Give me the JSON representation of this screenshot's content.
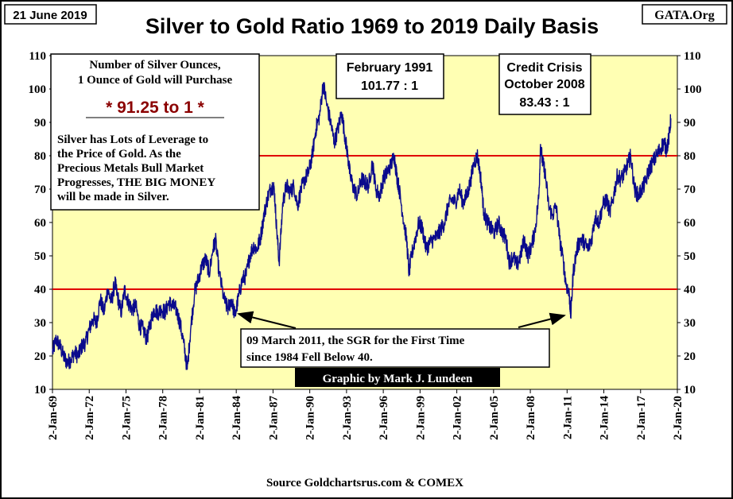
{
  "chart_data": {
    "type": "line",
    "title": "Silver to Gold Ratio 1969 to 2019 Daily Basis",
    "date_label": "21 June 2019",
    "source_tag": "GATA.Org",
    "footer": "Source Goldchartsrus.com & COMEX",
    "credit": "Graphic by Mark J. Lundeen",
    "xlabel": "",
    "ylabel": "",
    "ylim": [
      10,
      110
    ],
    "y_ticks": [
      "10",
      "20",
      "30",
      "40",
      "50",
      "60",
      "70",
      "80",
      "90",
      "100",
      "110"
    ],
    "x_ticks": [
      "2-Jan-69",
      "2-Jan-72",
      "2-Jan-75",
      "2-Jan-78",
      "2-Jan-81",
      "2-Jan-84",
      "2-Jan-87",
      "2-Jan-90",
      "2-Jan-93",
      "2-Jan-96",
      "2-Jan-99",
      "2-Jan-02",
      "2-Jan-05",
      "2-Jan-08",
      "2-Jan-11",
      "2-Jan-14",
      "2-Jan-17",
      "2-Jan-20"
    ],
    "x_range_years": [
      1969.0,
      2020.0
    ],
    "reference_lines": [
      40,
      80
    ],
    "colors": {
      "background": "#ffffb3",
      "series": "#0a0a8c",
      "reference": "#e00000",
      "highlight_text": "#8b0000",
      "credit_bg": "#000000"
    },
    "series": [
      {
        "values": [
          [
            1969.0,
            21
          ],
          [
            1969.3,
            25
          ],
          [
            1969.6,
            23
          ],
          [
            1969.9,
            20
          ],
          [
            1970.2,
            18
          ],
          [
            1970.5,
            19
          ],
          [
            1970.8,
            21
          ],
          [
            1971.1,
            20
          ],
          [
            1971.4,
            23
          ],
          [
            1971.7,
            24
          ],
          [
            1972.0,
            28
          ],
          [
            1972.3,
            31
          ],
          [
            1972.6,
            30
          ],
          [
            1972.9,
            37
          ],
          [
            1973.2,
            33
          ],
          [
            1973.5,
            40
          ],
          [
            1973.8,
            36
          ],
          [
            1974.1,
            42
          ],
          [
            1974.3,
            38
          ],
          [
            1974.6,
            33
          ],
          [
            1974.9,
            40
          ],
          [
            1975.2,
            36
          ],
          [
            1975.5,
            34
          ],
          [
            1975.8,
            35
          ],
          [
            1976.1,
            29
          ],
          [
            1976.4,
            28
          ],
          [
            1976.7,
            25
          ],
          [
            1977.0,
            30
          ],
          [
            1977.3,
            34
          ],
          [
            1977.6,
            33
          ],
          [
            1977.9,
            34
          ],
          [
            1978.2,
            33
          ],
          [
            1978.5,
            36
          ],
          [
            1978.8,
            35
          ],
          [
            1979.1,
            34
          ],
          [
            1979.4,
            30
          ],
          [
            1979.7,
            24
          ],
          [
            1980.0,
            16
          ],
          [
            1980.3,
            29
          ],
          [
            1980.6,
            39
          ],
          [
            1980.9,
            43
          ],
          [
            1981.2,
            47
          ],
          [
            1981.5,
            49
          ],
          [
            1981.8,
            45
          ],
          [
            1982.1,
            52
          ],
          [
            1982.3,
            55
          ],
          [
            1982.6,
            45
          ],
          [
            1983.0,
            37
          ],
          [
            1983.3,
            34
          ],
          [
            1983.6,
            37
          ],
          [
            1983.9,
            32
          ],
          [
            1984.2,
            38
          ],
          [
            1984.5,
            43
          ],
          [
            1984.8,
            44
          ],
          [
            1985.1,
            50
          ],
          [
            1985.4,
            53
          ],
          [
            1985.7,
            52
          ],
          [
            1986.0,
            56
          ],
          [
            1986.3,
            63
          ],
          [
            1986.6,
            68
          ],
          [
            1986.9,
            71
          ],
          [
            1987.1,
            70
          ],
          [
            1987.3,
            58
          ],
          [
            1987.5,
            48
          ],
          [
            1987.8,
            66
          ],
          [
            1988.1,
            71
          ],
          [
            1988.4,
            69
          ],
          [
            1988.7,
            71
          ],
          [
            1989.0,
            65
          ],
          [
            1989.3,
            70
          ],
          [
            1989.6,
            73
          ],
          [
            1989.9,
            75
          ],
          [
            1990.2,
            80
          ],
          [
            1990.5,
            88
          ],
          [
            1990.8,
            92
          ],
          [
            1991.1,
            101.8
          ],
          [
            1991.4,
            95
          ],
          [
            1991.7,
            90
          ],
          [
            1992.0,
            84
          ],
          [
            1992.3,
            88
          ],
          [
            1992.6,
            93
          ],
          [
            1992.9,
            85
          ],
          [
            1993.1,
            80
          ],
          [
            1993.3,
            74
          ],
          [
            1993.6,
            70
          ],
          [
            1993.9,
            68
          ],
          [
            1994.2,
            73
          ],
          [
            1994.5,
            72
          ],
          [
            1994.8,
            71
          ],
          [
            1995.1,
            78
          ],
          [
            1995.4,
            70
          ],
          [
            1995.7,
            68
          ],
          [
            1996.0,
            73
          ],
          [
            1996.3,
            75
          ],
          [
            1996.6,
            77
          ],
          [
            1996.9,
            80
          ],
          [
            1997.1,
            74
          ],
          [
            1997.3,
            70
          ],
          [
            1997.6,
            62
          ],
          [
            1997.9,
            55
          ],
          [
            1998.1,
            45
          ],
          [
            1998.3,
            50
          ],
          [
            1998.6,
            55
          ],
          [
            1998.9,
            60
          ],
          [
            1999.2,
            58
          ],
          [
            1999.5,
            52
          ],
          [
            1999.8,
            54
          ],
          [
            2000.1,
            55
          ],
          [
            2000.4,
            56
          ],
          [
            2000.7,
            58
          ],
          [
            2001.0,
            60
          ],
          [
            2001.3,
            65
          ],
          [
            2001.6,
            67
          ],
          [
            2001.9,
            66
          ],
          [
            2002.2,
            70
          ],
          [
            2002.5,
            66
          ],
          [
            2002.8,
            68
          ],
          [
            2003.1,
            72
          ],
          [
            2003.4,
            78
          ],
          [
            2003.7,
            80
          ],
          [
            2004.0,
            72
          ],
          [
            2004.2,
            63
          ],
          [
            2004.5,
            60
          ],
          [
            2004.8,
            58
          ],
          [
            2005.1,
            57
          ],
          [
            2005.4,
            60
          ],
          [
            2005.7,
            57
          ],
          [
            2006.0,
            55
          ],
          [
            2006.3,
            48
          ],
          [
            2006.6,
            50
          ],
          [
            2006.9,
            47
          ],
          [
            2007.2,
            50
          ],
          [
            2007.5,
            55
          ],
          [
            2007.8,
            50
          ],
          [
            2008.1,
            53
          ],
          [
            2008.4,
            58
          ],
          [
            2008.7,
            68
          ],
          [
            2008.83,
            83.4
          ],
          [
            2009.0,
            78
          ],
          [
            2009.2,
            75
          ],
          [
            2009.5,
            65
          ],
          [
            2009.8,
            62
          ],
          [
            2010.1,
            65
          ],
          [
            2010.4,
            55
          ],
          [
            2010.7,
            48
          ],
          [
            2010.9,
            42
          ],
          [
            2011.19,
            38
          ],
          [
            2011.3,
            32
          ],
          [
            2011.5,
            45
          ],
          [
            2011.8,
            52
          ],
          [
            2012.1,
            55
          ],
          [
            2012.4,
            54
          ],
          [
            2012.7,
            52
          ],
          [
            2013.0,
            55
          ],
          [
            2013.3,
            62
          ],
          [
            2013.6,
            60
          ],
          [
            2013.9,
            65
          ],
          [
            2014.2,
            67
          ],
          [
            2014.5,
            63
          ],
          [
            2014.8,
            68
          ],
          [
            2015.1,
            74
          ],
          [
            2015.4,
            73
          ],
          [
            2015.7,
            75
          ],
          [
            2016.0,
            78
          ],
          [
            2016.2,
            80
          ],
          [
            2016.5,
            70
          ],
          [
            2016.8,
            68
          ],
          [
            2017.1,
            70
          ],
          [
            2017.4,
            72
          ],
          [
            2017.7,
            76
          ],
          [
            2018.0,
            78
          ],
          [
            2018.3,
            80
          ],
          [
            2018.6,
            82
          ],
          [
            2018.9,
            84
          ],
          [
            2019.1,
            82
          ],
          [
            2019.3,
            85
          ],
          [
            2019.47,
            91.25
          ]
        ]
      }
    ]
  },
  "annotations": {
    "info_box": {
      "line1": "Number of Silver Ounces,",
      "line2": "1 Ounce of Gold will Purchase",
      "ratio": "* 91.25 to 1 *",
      "body1": "Silver has Lots of Leverage to",
      "body2": "the Price of Gold.  As the",
      "body3": "Precious Metals Bull Market",
      "body4": "Progresses,  THE BIG MONEY",
      "body5": "will be made in Silver."
    },
    "feb1991": {
      "line1": "February 1991",
      "line2": "101.77 : 1"
    },
    "credit_crisis": {
      "line1": "Credit Crisis",
      "line2": "October 2008",
      "line3": "83.43 : 1"
    },
    "march2011": {
      "line1": "09  March  2011, the SGR  for the First Time",
      "line2": "since 1984 Fell Below 40."
    }
  }
}
